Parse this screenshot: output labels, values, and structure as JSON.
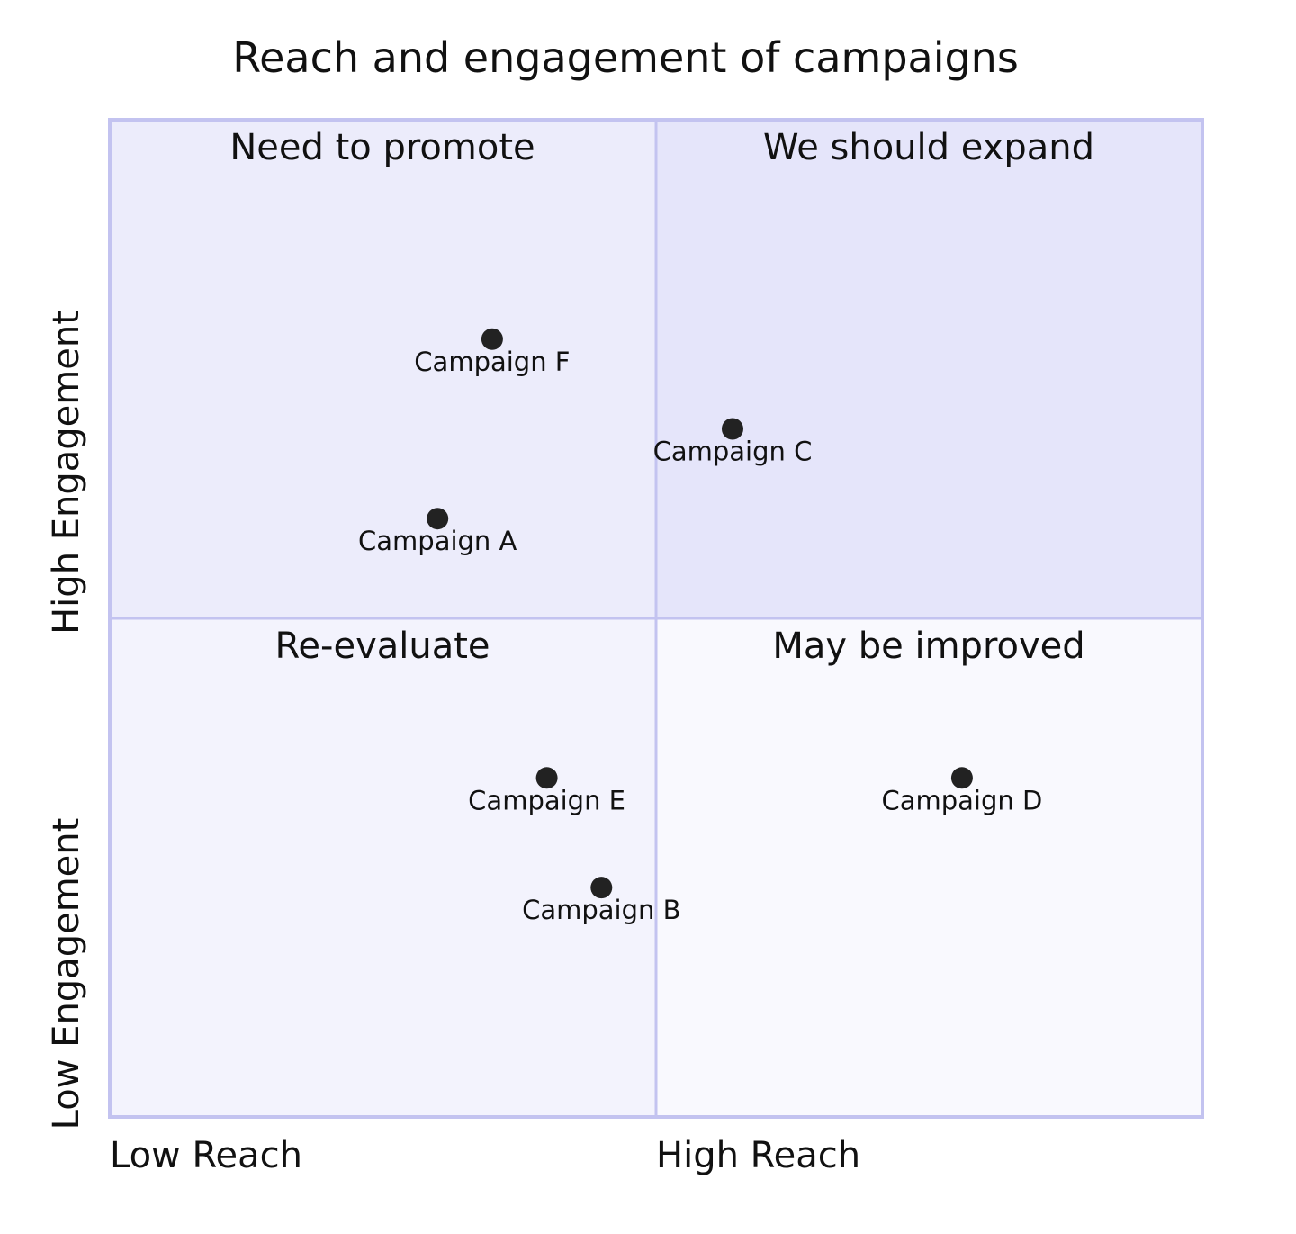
{
  "chart_data": {
    "type": "scatter",
    "title": "Reach and engagement of campaigns",
    "x_axis": {
      "low_label": "Low Reach",
      "high_label": "High Reach",
      "range": [
        0,
        1
      ]
    },
    "y_axis": {
      "low_label": "Low Engagement",
      "high_label": "High Engagement",
      "range": [
        0,
        1
      ]
    },
    "quadrants": {
      "top_right": {
        "label": "We should expand",
        "color": "#e5e5fa"
      },
      "top_left": {
        "label": "Need to promote",
        "color": "#ececfb"
      },
      "bottom_left": {
        "label": "Re-evaluate",
        "color": "#f3f3fd"
      },
      "bottom_right": {
        "label": "May be improved",
        "color": "#f9f9fe"
      }
    },
    "points": [
      {
        "label": "Campaign A",
        "x": 0.3,
        "y": 0.6
      },
      {
        "label": "Campaign B",
        "x": 0.45,
        "y": 0.23
      },
      {
        "label": "Campaign C",
        "x": 0.57,
        "y": 0.69
      },
      {
        "label": "Campaign D",
        "x": 0.78,
        "y": 0.34
      },
      {
        "label": "Campaign E",
        "x": 0.4,
        "y": 0.34
      },
      {
        "label": "Campaign F",
        "x": 0.35,
        "y": 0.78
      }
    ],
    "border_color": "#c3c3f0",
    "point_color": "#222222"
  }
}
